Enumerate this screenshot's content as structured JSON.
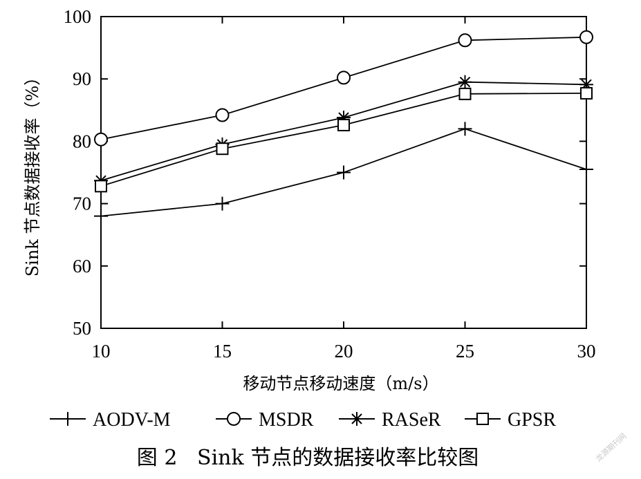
{
  "chart_data": {
    "type": "line",
    "x": [
      10,
      15,
      20,
      25,
      30
    ],
    "xlabel": "移动节点移动速度（m/s）",
    "ylabel": "Sink 节点数据接收率（%）",
    "xlim": [
      10,
      30
    ],
    "ylim": [
      50,
      100
    ],
    "xticks": [
      "10",
      "15",
      "20",
      "25",
      "30"
    ],
    "yticks": [
      "50",
      "60",
      "70",
      "80",
      "90",
      "100"
    ],
    "grid": false,
    "legend_position": "bottom",
    "series": [
      {
        "name": "AODV-M",
        "marker": "plus",
        "values": [
          68,
          70,
          75,
          82,
          75.5
        ]
      },
      {
        "name": "MSDR",
        "marker": "circle",
        "values": [
          80.3,
          84.2,
          90.2,
          96.2,
          96.7
        ]
      },
      {
        "name": "RASeR",
        "marker": "asterisk",
        "values": [
          73.7,
          79.5,
          83.8,
          89.5,
          89.1
        ]
      },
      {
        "name": "GPSR",
        "marker": "square",
        "values": [
          72.8,
          78.8,
          82.6,
          87.6,
          87.7
        ]
      }
    ]
  },
  "caption": "图 2   Sink 节点的数据接收率比较图",
  "watermark": "龙源期刊网"
}
